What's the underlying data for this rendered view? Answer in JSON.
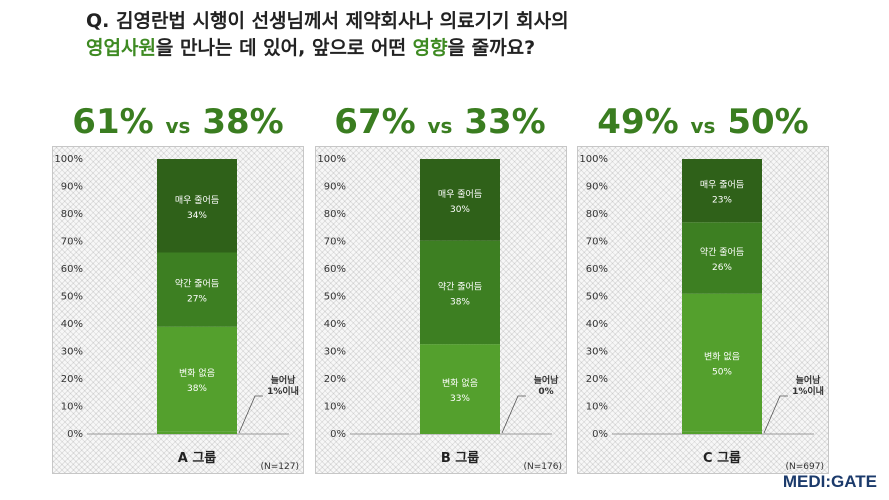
{
  "title": {
    "line1": "Q. 김영란법 시행이 선생님께서 제약회사나 의료기기 회사의",
    "line2_green1": "영업사원",
    "line2_mid": "을 만나는 데 있어, 앞으로 어떤 ",
    "line2_green2": "영향",
    "line2_end": "을 줄까요?"
  },
  "logo": "MEDI:GATE",
  "colors": {
    "dark": "#2f6119",
    "medium": "#3d7f22",
    "light": "#54a02d",
    "accent_text": "#3a7d20"
  },
  "chart_data": [
    {
      "type": "bar",
      "stacked": true,
      "headline": {
        "left": "61%",
        "vs": "vs",
        "right": "38%"
      },
      "category": "A 그룹",
      "n_label": "(N=127)",
      "ylim": [
        0,
        100
      ],
      "yticks": [
        "0%",
        "10%",
        "20%",
        "30%",
        "40%",
        "50%",
        "60%",
        "70%",
        "80%",
        "90%",
        "100%"
      ],
      "series": [
        {
          "name": "늘어남",
          "value": 1,
          "label": "1%이내",
          "callout": true
        },
        {
          "name": "변화 없음",
          "value": 38,
          "label": "38%"
        },
        {
          "name": "약간 줄어듬",
          "value": 27,
          "label": "27%"
        },
        {
          "name": "매우 줄어듬",
          "value": 34,
          "label": "34%"
        }
      ]
    },
    {
      "type": "bar",
      "stacked": true,
      "headline": {
        "left": "67%",
        "vs": "vs",
        "right": "33%"
      },
      "category": "B 그룹",
      "n_label": "(N=176)",
      "ylim": [
        0,
        100
      ],
      "yticks": [
        "0%",
        "10%",
        "20%",
        "30%",
        "40%",
        "50%",
        "60%",
        "70%",
        "80%",
        "90%",
        "100%"
      ],
      "series": [
        {
          "name": "늘어남",
          "value": 0,
          "label": "0%",
          "callout": true
        },
        {
          "name": "변화 없음",
          "value": 33,
          "label": "33%"
        },
        {
          "name": "약간 줄어듬",
          "value": 38,
          "label": "38%"
        },
        {
          "name": "매우 줄어듬",
          "value": 30,
          "label": "30%"
        }
      ]
    },
    {
      "type": "bar",
      "stacked": true,
      "headline": {
        "left": "49%",
        "vs": "vs",
        "right": "50%"
      },
      "category": "C 그룹",
      "n_label": "(N=697)",
      "ylim": [
        0,
        100
      ],
      "yticks": [
        "0%",
        "10%",
        "20%",
        "30%",
        "40%",
        "50%",
        "60%",
        "70%",
        "80%",
        "90%",
        "100%"
      ],
      "series": [
        {
          "name": "늘어남",
          "value": 1,
          "label": "1%이내",
          "callout": true
        },
        {
          "name": "변화 없음",
          "value": 50,
          "label": "50%"
        },
        {
          "name": "약간 줄어듬",
          "value": 26,
          "label": "26%"
        },
        {
          "name": "매우 줄어듬",
          "value": 23,
          "label": "23%"
        }
      ]
    }
  ]
}
